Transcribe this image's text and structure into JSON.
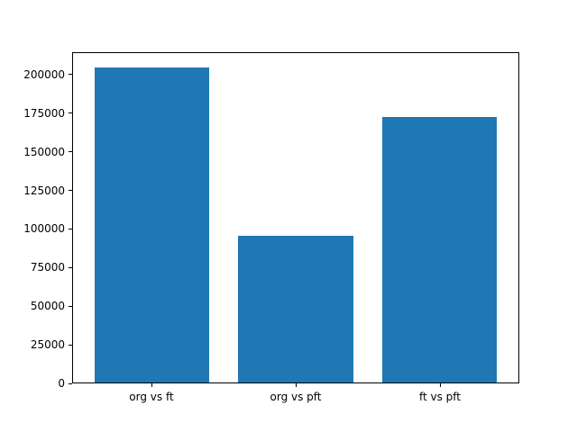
{
  "chart_data": {
    "type": "bar",
    "title": "",
    "xlabel": "",
    "ylabel": "",
    "categories": [
      "org vs ft",
      "org vs pft",
      "ft vs pft"
    ],
    "values": [
      205000,
      95500,
      173000
    ],
    "x": [
      0,
      1,
      2
    ],
    "bar_width": 0.8,
    "xlim": [
      -0.55,
      2.55
    ],
    "ylim": [
      0,
      214500
    ],
    "yticks": [
      0,
      25000,
      50000,
      75000,
      100000,
      125000,
      150000,
      175000,
      200000
    ],
    "yticklabels": [
      "0",
      "25000",
      "50000",
      "75000",
      "100000",
      "125000",
      "150000",
      "175000",
      "200000"
    ],
    "bar_color": "#1f77b4",
    "grid": false,
    "legend": "none",
    "plot_background": "#ffffff",
    "spine_color": "#000000"
  }
}
